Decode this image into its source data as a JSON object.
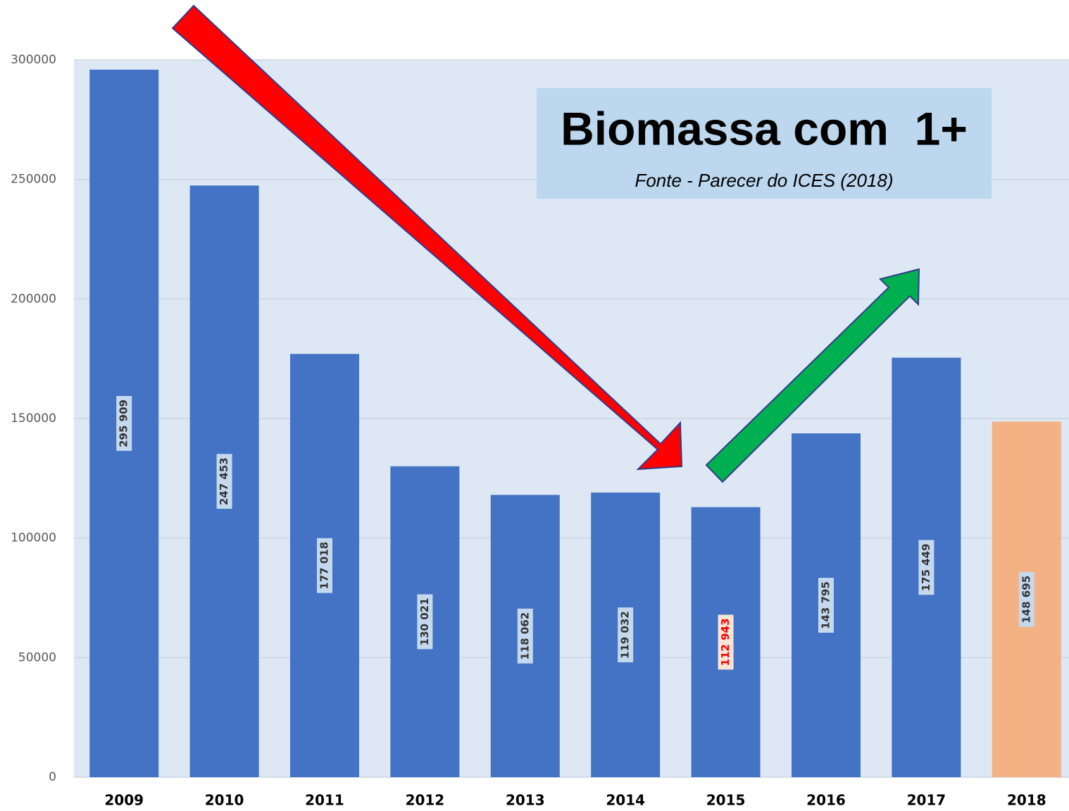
{
  "chart_data": {
    "type": "bar",
    "title": "Biomassa com  1+",
    "subtitle": "Fonte - Parecer do ICES (2018)",
    "categories": [
      "2009",
      "2010",
      "2011",
      "2012",
      "2013",
      "2014",
      "2015",
      "2016",
      "2017",
      "2018"
    ],
    "values": [
      295909,
      247453,
      177018,
      130021,
      118062,
      119032,
      112943,
      143795,
      175449,
      148695
    ],
    "value_labels": [
      "295 909",
      "247 453",
      "177 018",
      "130 021",
      "118 062",
      "119 032",
      "112 943",
      "143 795",
      "175 449",
      "148 695"
    ],
    "colors": [
      "#4472c4",
      "#4472c4",
      "#4472c4",
      "#4472c4",
      "#4472c4",
      "#4472c4",
      "#4472c4",
      "#4472c4",
      "#4472c4",
      "#f4b183"
    ],
    "value_label_colors": [
      "#333333",
      "#333333",
      "#333333",
      "#333333",
      "#333333",
      "#333333",
      "#ff0000",
      "#333333",
      "#333333",
      "#333333"
    ],
    "ylim": [
      0,
      300000
    ],
    "yticks": [
      0,
      50000,
      100000,
      150000,
      200000,
      250000,
      300000
    ],
    "grid": true
  }
}
